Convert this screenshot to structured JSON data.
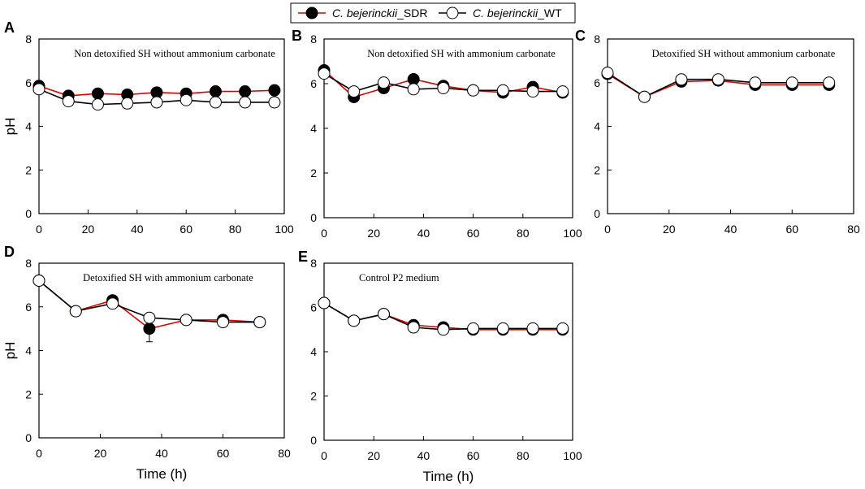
{
  "legend": {
    "series_a_species": "C. bejerinckii",
    "series_a_suffix": "_SDR",
    "series_b_species": "C. bejerinckii",
    "series_b_suffix": "_WT"
  },
  "colors": {
    "sdr_line": "#d40000",
    "wt_line": "#000000",
    "sdr_marker": "#000000",
    "wt_marker": "#ffffff"
  },
  "chart_data": [
    {
      "id": "A",
      "type": "line",
      "title": "Non detoxified SH without ammonium carbonate",
      "xlabel": "",
      "ylabel": "pH",
      "xlim": [
        0,
        100
      ],
      "ylim": [
        0,
        8
      ],
      "xticks": [
        0,
        20,
        40,
        60,
        80,
        100
      ],
      "yticks": [
        0,
        2,
        4,
        6,
        8
      ],
      "x": [
        0,
        12,
        24,
        36,
        48,
        60,
        72,
        84,
        96
      ],
      "series": [
        {
          "name": "C. bejerinckii_SDR",
          "values": [
            5.85,
            5.4,
            5.5,
            5.45,
            5.55,
            5.5,
            5.6,
            5.6,
            5.65
          ]
        },
        {
          "name": "C. bejerinckii_WT",
          "values": [
            5.7,
            5.15,
            5.0,
            5.05,
            5.1,
            5.2,
            5.1,
            5.1,
            5.1
          ]
        }
      ]
    },
    {
      "id": "B",
      "type": "line",
      "title": "Non detoxified SH with ammonium carbonate",
      "xlabel": "",
      "ylabel": "",
      "xlim": [
        0,
        100
      ],
      "ylim": [
        0,
        8
      ],
      "xticks": [
        0,
        20,
        40,
        60,
        80,
        100
      ],
      "yticks": [
        0,
        2,
        4,
        6,
        8
      ],
      "x": [
        0,
        12,
        24,
        36,
        48,
        60,
        72,
        84,
        96
      ],
      "series": [
        {
          "name": "C. bejerinckii_SDR",
          "values": [
            6.6,
            5.4,
            5.8,
            6.2,
            5.9,
            5.7,
            5.6,
            5.85,
            5.6
          ]
        },
        {
          "name": "C. bejerinckii_WT",
          "values": [
            6.45,
            5.65,
            6.05,
            5.75,
            5.8,
            5.7,
            5.7,
            5.65,
            5.65
          ]
        }
      ]
    },
    {
      "id": "C",
      "type": "line",
      "title": "Detoxified SH without ammonium carbonate",
      "xlabel": "",
      "ylabel": "",
      "xlim": [
        0,
        80
      ],
      "ylim": [
        0,
        8
      ],
      "xticks": [
        0,
        20,
        40,
        60,
        80
      ],
      "yticks": [
        0,
        2,
        4,
        6,
        8
      ],
      "x": [
        0,
        12,
        24,
        36,
        48,
        60,
        72
      ],
      "series": [
        {
          "name": "C. bejerinckii_SDR",
          "values": [
            6.4,
            5.35,
            6.05,
            6.1,
            5.9,
            5.9,
            5.9
          ]
        },
        {
          "name": "C. bejerinckii_WT",
          "values": [
            6.45,
            5.35,
            6.15,
            6.15,
            6.0,
            6.0,
            6.0
          ]
        }
      ]
    },
    {
      "id": "D",
      "type": "line",
      "title": "Detoxified SH with ammonium carbonate",
      "xlabel": "Time (h)",
      "ylabel": "pH",
      "xlim": [
        0,
        80
      ],
      "ylim": [
        0,
        8
      ],
      "xticks": [
        0,
        20,
        40,
        60,
        80
      ],
      "yticks": [
        0,
        2,
        4,
        6,
        8
      ],
      "x": [
        0,
        12,
        24,
        36,
        48,
        60,
        72
      ],
      "series": [
        {
          "name": "C. bejerinckii_SDR",
          "values": [
            7.2,
            5.8,
            6.3,
            5.0,
            5.4,
            5.4,
            5.3
          ]
        },
        {
          "name": "C. bejerinckii_WT",
          "values": [
            7.2,
            5.8,
            6.15,
            5.5,
            5.4,
            5.3,
            5.3
          ]
        }
      ],
      "error_bars": [
        {
          "series": 0,
          "x": 36,
          "value": 5.0,
          "err": 0.6
        }
      ]
    },
    {
      "id": "E",
      "type": "line",
      "title": "Control P2 medium",
      "xlabel": "Time (h)",
      "ylabel": "",
      "xlim": [
        0,
        100
      ],
      "ylim": [
        0,
        8
      ],
      "xticks": [
        0,
        20,
        40,
        60,
        80,
        100
      ],
      "yticks": [
        0,
        2,
        4,
        6,
        8
      ],
      "x": [
        0,
        12,
        24,
        36,
        48,
        60,
        72,
        84,
        96
      ],
      "series": [
        {
          "name": "C. bejerinckii_SDR",
          "values": [
            6.2,
            5.4,
            5.7,
            5.2,
            5.1,
            5.0,
            5.0,
            5.0,
            5.0
          ]
        },
        {
          "name": "C. bejerinckii_WT",
          "values": [
            6.2,
            5.4,
            5.7,
            5.1,
            5.0,
            5.05,
            5.05,
            5.05,
            5.05
          ]
        }
      ]
    }
  ]
}
